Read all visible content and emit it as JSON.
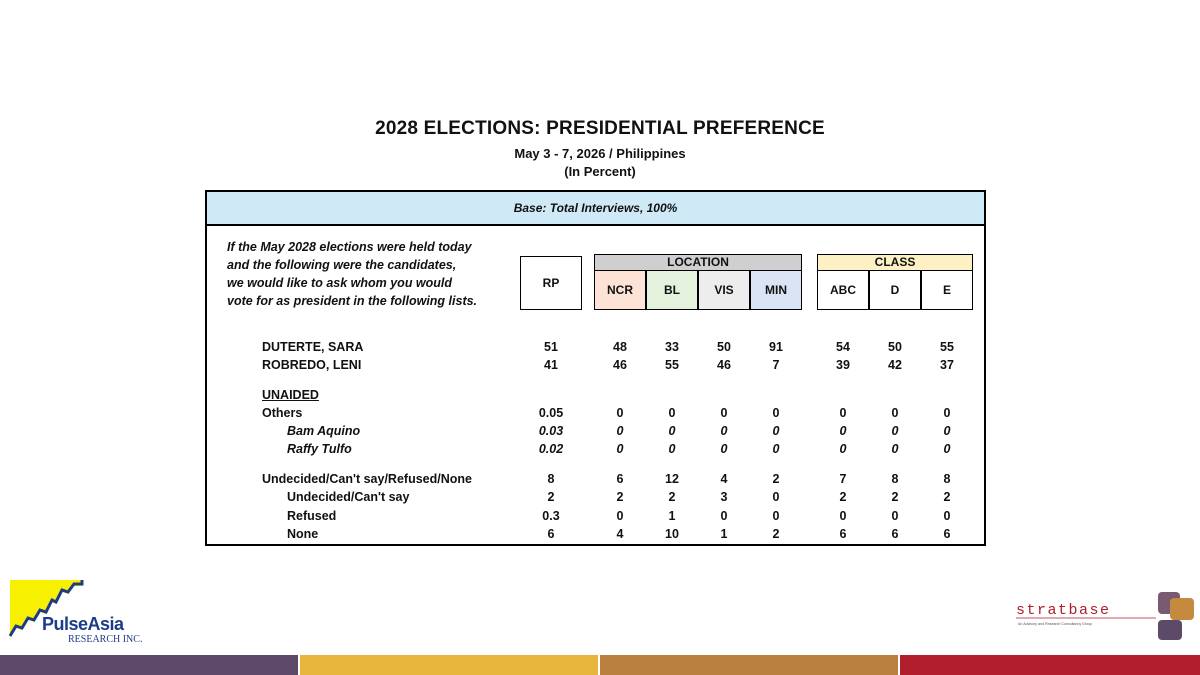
{
  "title": "2028 ELECTIONS: PRESIDENTIAL PREFERENCE",
  "subtitle": "May 3 - 7, 2026 / Philippines",
  "unit": "(In Percent)",
  "base": "Base: Total Interviews, 100%",
  "question_lines": [
    "If the May 2028 elections were held today",
    "and the following were the candidates,",
    "we would like to ask whom you would",
    "vote for as president in the following lists."
  ],
  "headers": {
    "rp": "RP",
    "location": "LOCATION",
    "class": "CLASS",
    "ncr": "NCR",
    "bl": "BL",
    "vis": "VIS",
    "min": "MIN",
    "abc": "ABC",
    "d": "D",
    "e": "E"
  },
  "colors": {
    "ncr_bg": "#fde3d6",
    "bl_bg": "#e4f1dc",
    "vis_bg": "#ededed",
    "min_bg": "#dbe4f5",
    "location_bg": "#cfcfcf",
    "class_bg": "#fdf0c4",
    "base_bg": "#cfe9f7",
    "band1": "#5c4a68",
    "band2": "#e8b53d",
    "band3": "#b9813d",
    "band4": "#b01e2c"
  },
  "rows": [
    {
      "label": "DUTERTE, SARA",
      "values": [
        "51",
        "48",
        "33",
        "50",
        "91",
        "54",
        "50",
        "55"
      ]
    },
    {
      "label": "ROBREDO, LENI",
      "values": [
        "41",
        "46",
        "55",
        "46",
        "7",
        "39",
        "42",
        "37"
      ]
    },
    {
      "label": "UNAIDED"
    },
    {
      "label": "Others",
      "values": [
        "0.05",
        "0",
        "0",
        "0",
        "0",
        "0",
        "0",
        "0"
      ]
    },
    {
      "label": "Bam Aquino",
      "values": [
        "0.03",
        "0",
        "0",
        "0",
        "0",
        "0",
        "0",
        "0"
      ]
    },
    {
      "label": "Raffy Tulfo",
      "values": [
        "0.02",
        "0",
        "0",
        "0",
        "0",
        "0",
        "0",
        "0"
      ]
    },
    {
      "label": "Undecided/Can't say/Refused/None",
      "values": [
        "8",
        "6",
        "12",
        "4",
        "2",
        "7",
        "8",
        "8"
      ]
    },
    {
      "label": "Undecided/Can't say",
      "values": [
        "2",
        "2",
        "2",
        "3",
        "0",
        "2",
        "2",
        "2"
      ]
    },
    {
      "label": "Refused",
      "values": [
        "0.3",
        "0",
        "1",
        "0",
        "0",
        "0",
        "0",
        "0"
      ]
    },
    {
      "label": "None",
      "values": [
        "6",
        "4",
        "10",
        "1",
        "2",
        "6",
        "6",
        "6"
      ]
    }
  ],
  "logo_left": {
    "name": "PulseAsia",
    "sub": "RESEARCH INC."
  },
  "logo_right": {
    "name": "stratbase",
    "tagline": "An Advisory and Research Consultancy Group"
  }
}
